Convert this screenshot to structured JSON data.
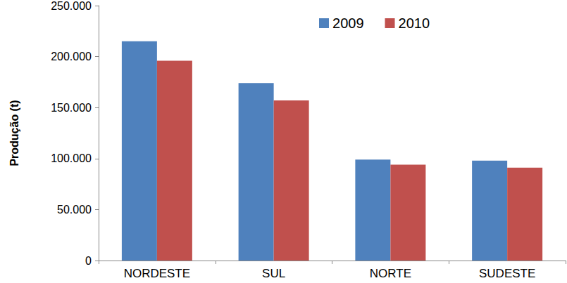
{
  "chart_data": {
    "type": "bar",
    "y_label": "Produção (t)",
    "categories": [
      "NORDESTE",
      "SUL",
      "NORTE",
      "SUDESTE"
    ],
    "series": [
      {
        "name": "2009",
        "color": "#4f81bd",
        "values": [
          215000,
          174000,
          99000,
          98000
        ]
      },
      {
        "name": "2010",
        "color": "#c0504d",
        "values": [
          196000,
          157000,
          94000,
          91000
        ]
      }
    ],
    "ylim": [
      0,
      250000
    ],
    "yticks": [
      0,
      {
        "value": 50000,
        "label": "50.000"
      },
      {
        "value": 100000,
        "label": "100.000"
      },
      {
        "value": 150000,
        "label": "150.000"
      },
      {
        "value": 200000,
        "label": "200.000"
      },
      {
        "value": 250000,
        "label": "250.000"
      }
    ],
    "grid": false,
    "legend": "top-right"
  }
}
